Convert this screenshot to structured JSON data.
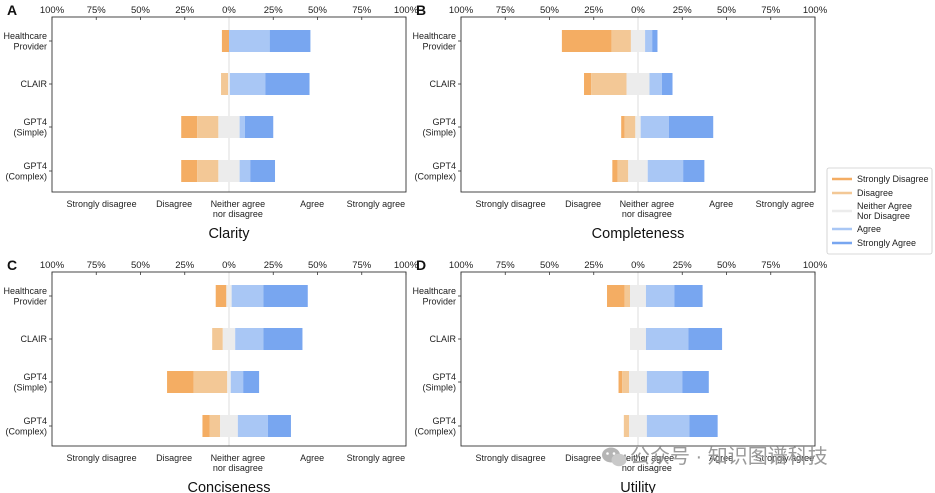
{
  "chart_data": {
    "type": "bar",
    "orientation": "horizontal",
    "stacked": "diverging",
    "legend": {
      "placement": "right",
      "entries": [
        {
          "label": "Strongly Disagree",
          "color": "#f4ad63"
        },
        {
          "label": "Disagree",
          "color": "#f3c896"
        },
        {
          "label": "Neither Agree Nor Disagree",
          "lines": [
            "Neither Agree",
            "Nor Disagree"
          ],
          "color": "#ececec"
        },
        {
          "label": "Agree",
          "color": "#a9c7f5"
        },
        {
          "label": "Strongly Agree",
          "color": "#78a6f0"
        }
      ]
    },
    "categories": [
      {
        "label": "Healthcare Provider",
        "lines": [
          "Healthcare",
          "Provider"
        ]
      },
      {
        "label": "CLAIR",
        "lines": [
          "CLAIR"
        ]
      },
      {
        "label": "GPT4 (Simple)",
        "lines": [
          "GPT4",
          "(Simple)"
        ]
      },
      {
        "label": "GPT4 (Complex)",
        "lines": [
          "GPT4",
          "(Complex)"
        ]
      }
    ],
    "xaxis": {
      "range": [
        -100,
        100
      ],
      "ticks": [
        -100,
        -75,
        -50,
        -25,
        0,
        25,
        50,
        75,
        100
      ],
      "tick_labels": [
        "100%",
        "75%",
        "50%",
        "25%",
        "0%",
        "25%",
        "50%",
        "75%",
        "100%"
      ]
    },
    "response_labels": [
      {
        "text": [
          "Strongly disagree"
        ],
        "at": -72
      },
      {
        "text": [
          "Disagree"
        ],
        "at": -31
      },
      {
        "text": [
          "Neither agree",
          "nor disagree"
        ],
        "at": 5
      },
      {
        "text": [
          "Agree"
        ],
        "at": 47
      },
      {
        "text": [
          "Strongly agree"
        ],
        "at": 83
      }
    ],
    "panels": [
      {
        "letter": "A",
        "title": "Clarity",
        "series": [
          {
            "name": "Strongly Disagree",
            "values": [
              4,
              0,
              9,
              9
            ]
          },
          {
            "name": "Disagree",
            "values": [
              0,
              4,
              12,
              12
            ]
          },
          {
            "name": "Neither Agree Nor Disagree",
            "values": [
              0,
              1,
              12,
              12
            ]
          },
          {
            "name": "Agree",
            "values": [
              23,
              20,
              3,
              6
            ]
          },
          {
            "name": "Strongly Agree",
            "values": [
              23,
              25,
              16,
              14
            ]
          }
        ]
      },
      {
        "letter": "B",
        "title": "Completeness",
        "series": [
          {
            "name": "Strongly Disagree",
            "values": [
              28,
              4,
              2,
              3
            ]
          },
          {
            "name": "Disagree",
            "values": [
              11,
              20,
              6,
              6
            ]
          },
          {
            "name": "Neither Agree Nor Disagree",
            "values": [
              8,
              13,
              3,
              11
            ]
          },
          {
            "name": "Agree",
            "values": [
              4,
              7,
              16,
              20
            ]
          },
          {
            "name": "Strongly Agree",
            "values": [
              3,
              6,
              25,
              12
            ]
          }
        ]
      },
      {
        "letter": "C",
        "title": "Conciseness",
        "series": [
          {
            "name": "Strongly Disagree",
            "values": [
              6,
              0,
              15,
              4
            ]
          },
          {
            "name": "Disagree",
            "values": [
              0,
              6,
              19,
              6
            ]
          },
          {
            "name": "Neither Agree Nor Disagree",
            "values": [
              3,
              7,
              2,
              10
            ]
          },
          {
            "name": "Agree",
            "values": [
              18,
              16,
              7,
              17
            ]
          },
          {
            "name": "Strongly Agree",
            "values": [
              25,
              22,
              9,
              13
            ]
          }
        ]
      },
      {
        "letter": "D",
        "title": "Utility",
        "series": [
          {
            "name": "Strongly Disagree",
            "values": [
              10,
              0,
              2,
              0
            ]
          },
          {
            "name": "Disagree",
            "values": [
              3,
              0,
              4,
              3
            ]
          },
          {
            "name": "Neither Agree Nor Disagree",
            "values": [
              9,
              9,
              10,
              10
            ]
          },
          {
            "name": "Agree",
            "values": [
              16,
              24,
              20,
              24
            ]
          },
          {
            "name": "Strongly Agree",
            "values": [
              16,
              19,
              15,
              16
            ]
          }
        ]
      }
    ]
  },
  "watermark": "公众号 · 知识图谱科技"
}
